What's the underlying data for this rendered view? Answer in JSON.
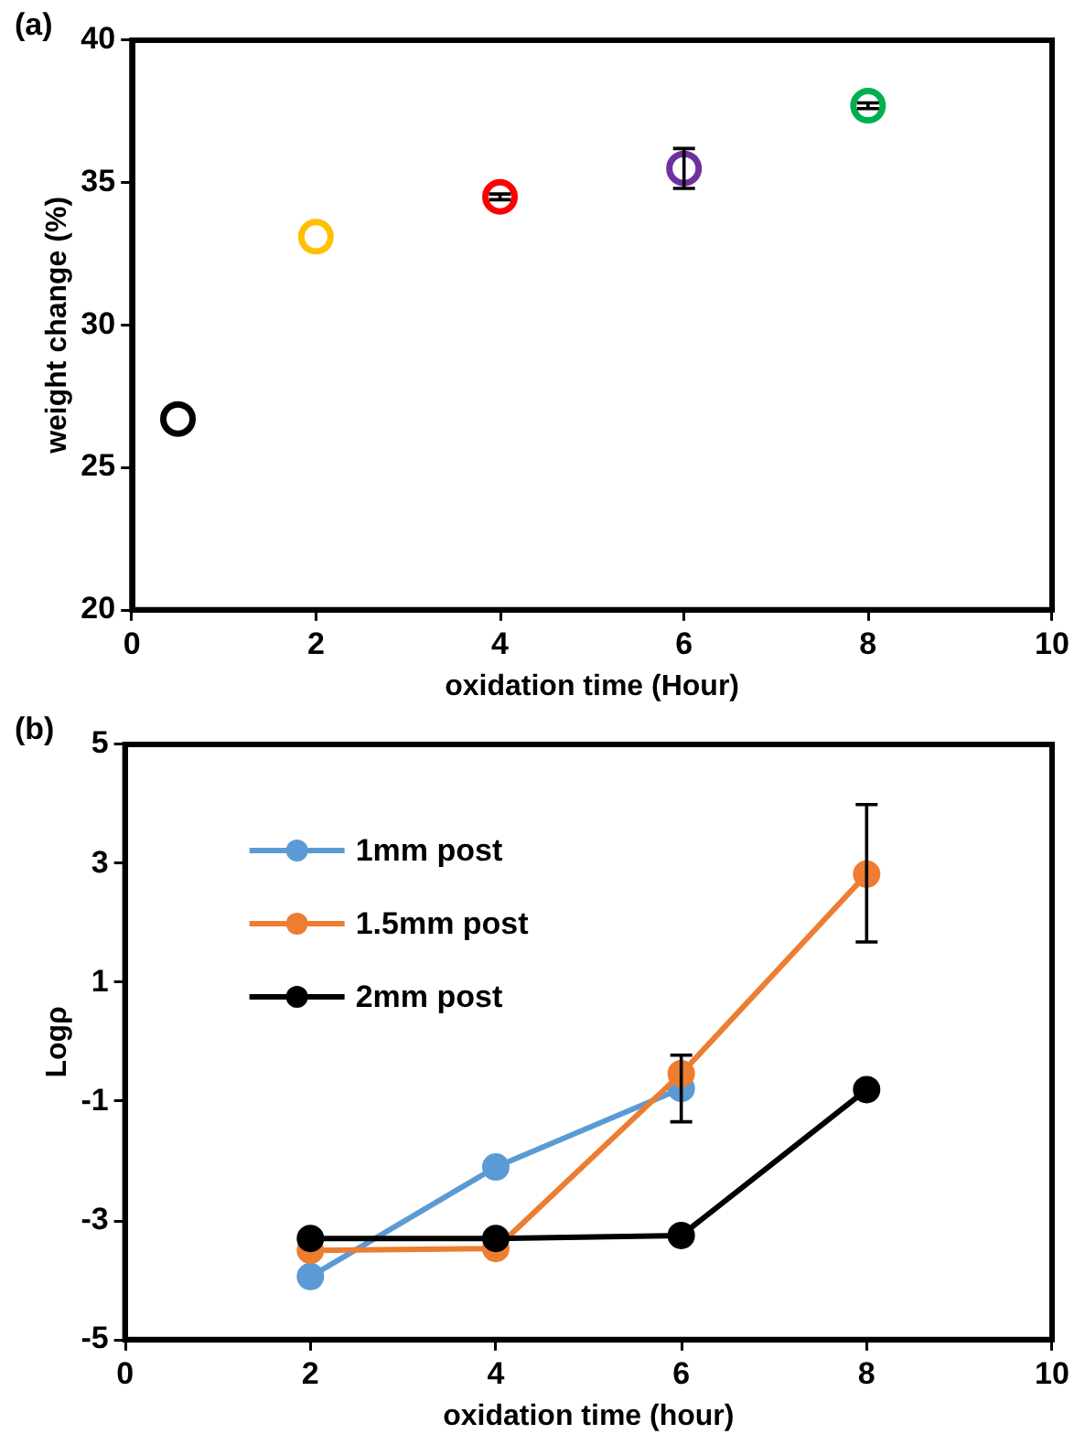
{
  "chart_data": [
    {
      "type": "scatter",
      "title": "(a)",
      "xlabel": "oxidation time (Hour)",
      "ylabel": "weight change (%)",
      "x": [
        0.5,
        2,
        4,
        6,
        8
      ],
      "values": [
        26.7,
        33.1,
        34.5,
        35.5,
        37.7
      ],
      "colors": [
        "#000000",
        "#ffc000",
        "#ff0000",
        "#7030a0",
        "#00b050"
      ],
      "errors": [
        null,
        null,
        0.1,
        0.7,
        0.1
      ],
      "xlim": [
        0,
        10
      ],
      "xticks": [
        0,
        2,
        4,
        6,
        8,
        10
      ],
      "ylim": [
        20,
        40
      ],
      "yticks": [
        20,
        25,
        30,
        35,
        40
      ],
      "marker": "circle"
    },
    {
      "type": "line",
      "title": "(b)",
      "xlabel": "oxidation time (hour)",
      "ylabel": "Logρ",
      "x": [
        2,
        4,
        6,
        8
      ],
      "series": [
        {
          "name": "1mm post",
          "color": "#5b9bd5",
          "values": [
            -3.94,
            -2.1,
            -0.78,
            null
          ],
          "errors": [
            null,
            null,
            0.56,
            null
          ]
        },
        {
          "name": "1.5mm post",
          "color": "#ed7d31",
          "values": [
            -3.5,
            -3.47,
            -0.53,
            2.82
          ],
          "errors": [
            null,
            null,
            null,
            [
              1.68,
              3.99
            ]
          ]
        },
        {
          "name": "2mm post",
          "color": "#000000",
          "values": [
            -3.3,
            -3.3,
            -3.25,
            -0.8
          ]
        }
      ],
      "xlim": [
        0,
        10
      ],
      "xticks": [
        0,
        2,
        4,
        6,
        8,
        10
      ],
      "ylim": [
        -5,
        5
      ],
      "yticks": [
        -5,
        -3,
        -1,
        1,
        3,
        5
      ],
      "marker": "circle",
      "line_style": "solid",
      "legend": "top left"
    }
  ]
}
